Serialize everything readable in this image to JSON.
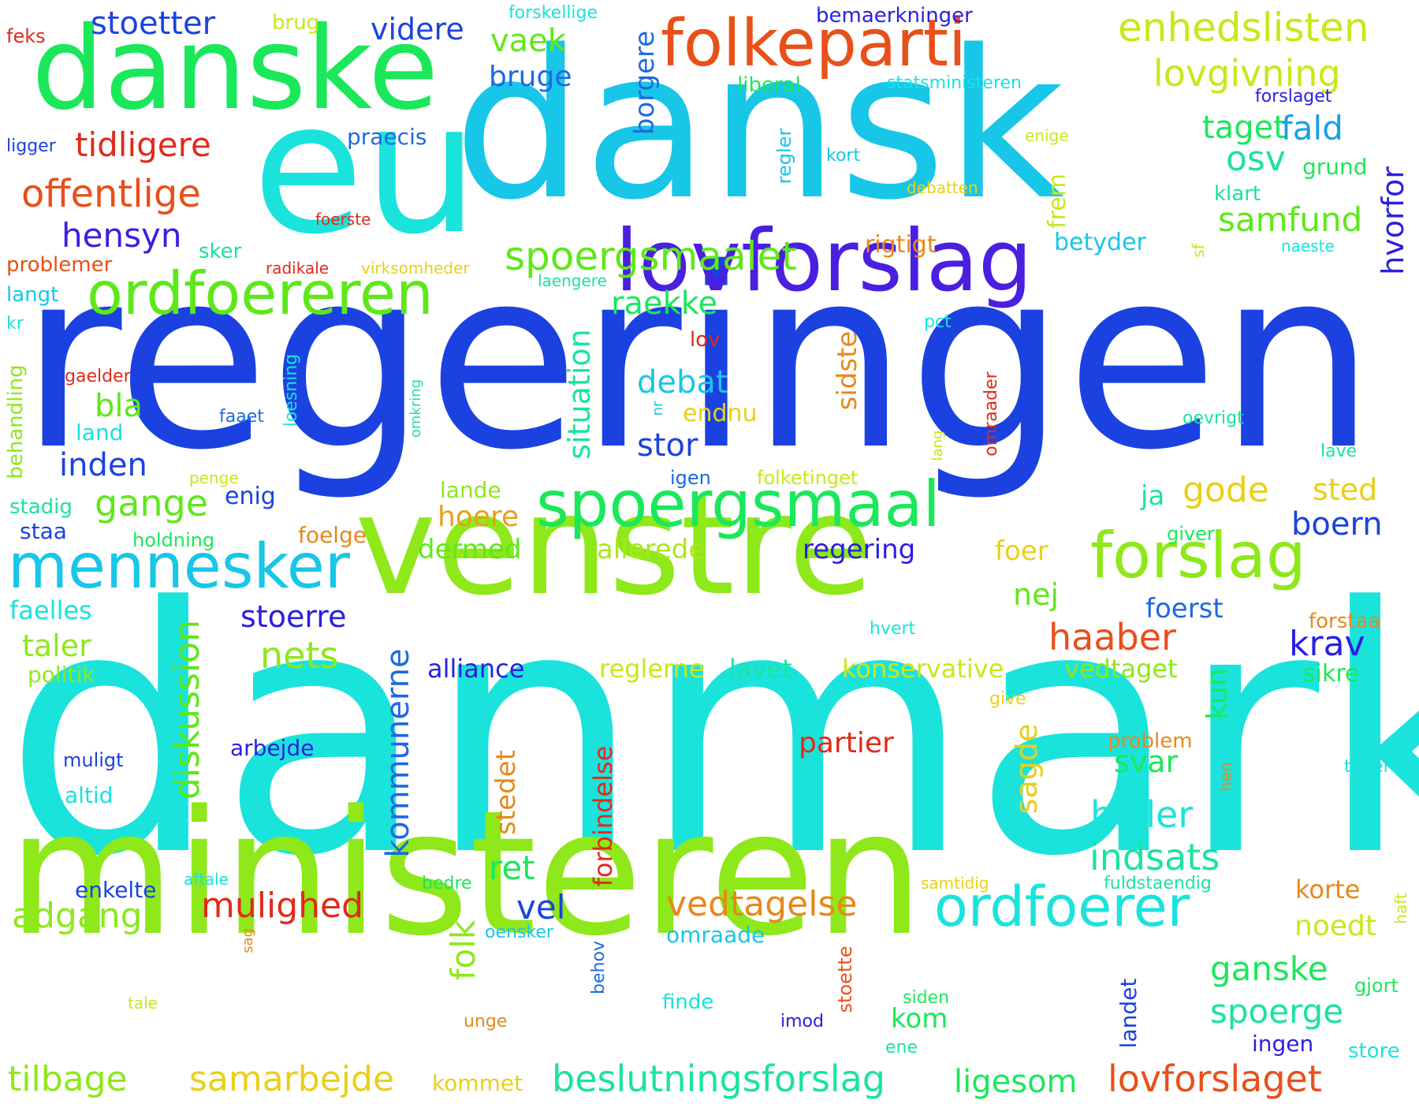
{
  "palette": {
    "cyan": "#1ae3dc",
    "sky": "#18c6e8",
    "blue": "#1b42e0",
    "indigo": "#4a1fe0",
    "green": "#1ae85a",
    "lime": "#8ee81a",
    "yellowgreen": "#c8e81a",
    "yellow": "#e8d01a",
    "orange": "#e8881a",
    "redorange": "#e8501a",
    "red": "#e02a1a",
    "teal": "#1ae3a0"
  },
  "words": {
    "w_danmark": "danmark",
    "w_regeringen": "regeringen",
    "w_ministeren": "ministeren",
    "w_dansk": "dansk",
    "w_eu": "eu",
    "w_venstre": "venstre",
    "w_danske": "danske",
    "w_lovforslag": "lovforslag",
    "w_folkeparti": "folkeparti",
    "w_spoergsmaal": "spoergsmaal",
    "w_ordfoereren": "ordfoereren",
    "w_mennesker": "mennesker",
    "w_forslag": "forslag",
    "w_ordfoerer": "ordfoerer",
    "w_enhedslisten": "enhedslisten",
    "w_lovgivning": "lovgivning",
    "w_offentlige": "offentlige",
    "w_tidligere": "tidligere",
    "w_spoergsmaalet": "spoergsmaalet",
    "w_beslutningsforslag": "beslutningsforslag",
    "w_lovforslaget": "lovforslaget",
    "w_samarbejde": "samarbejde",
    "w_vedtagelse": "vedtagelse",
    "w_mulighed": "mulighed",
    "w_stoetter": "stoetter",
    "w_videre": "videre",
    "w_vaek": "vaek",
    "w_bruge": "bruge",
    "w_hensyn": "hensyn",
    "w_osv": "osv",
    "w_samfund": "samfund",
    "w_taget": "taget",
    "w_fald": "fald",
    "w_haaber": "haaber",
    "w_heller": "heller",
    "w_indsats": "indsats",
    "w_diskussion": "diskussion",
    "w_kommunerne": "kommunerne",
    "w_situation": "situation",
    "w_gode": "gode",
    "w_nets": "nets",
    "w_tilbage": "tilbage",
    "w_adgang": "adgang",
    "w_ganske": "ganske",
    "w_spoerge": "spoerge",
    "w_gange": "gange",
    "w_inden": "inden",
    "w_stor": "stor",
    "w_debat": "debat",
    "w_raekke": "raekke",
    "w_bla": "bla",
    "w_boern": "boern",
    "w_krav": "krav",
    "w_stoerre": "stoerre",
    "w_taler": "taler",
    "w_hvorfor": "hvorfor",
    "w_borgere": "borgere",
    "w_folk": "folk",
    "w_sagde": "sagde",
    "w_stedet": "stedet",
    "w_forbindelse": "forbindelse",
    "w_ret": "ret",
    "w_vel": "vel",
    "w_sidste": "sidste",
    "w_noedt": "noedt",
    "w_kun": "kun",
    "w_svar": "svar",
    "w_partier": "partier",
    "w_hoere": "hoere",
    "w_dermed": "dermed",
    "w_allerede": "allerede",
    "w_regering": "regering",
    "w_foer": "foer",
    "w_nej": "nej",
    "w_foerst": "foerst",
    "w_alliance": "alliance",
    "w_reglerne": "reglerne",
    "w_lavet": "lavet",
    "w_konservative": "konservative",
    "w_vedtaget": "vedtaget",
    "w_sted": "sted",
    "w_ja": "ja",
    "w_arbejde": "arbejde",
    "w_kom": "kom",
    "w_korte": "korte",
    "w_sikre": "sikre",
    "w_frem": "frem",
    "w_betyder": "betyder",
    "w_rigtigt": "rigtigt",
    "w_grund": "grund",
    "w_klart": "klart",
    "w_praecis": "praecis",
    "w_endnu": "endnu",
    "w_enig": "enig",
    "w_lande": "lande",
    "w_staa": "staa",
    "w_faelles": "faelles",
    "w_politik": "politik",
    "w_land": "land",
    "w_landet": "landet",
    "w_ligesom": "ligesom",
    "w_kommet": "kommet",
    "w_omraade": "omraade",
    "w_ingen": "ingen",
    "w_store": "store",
    "w_brug": "brug",
    "w_forskellige": "forskellige",
    "w_bemaerkninger": "bemaerkninger",
    "w_statsministeren": "statsministeren",
    "w_liberal": "liberal",
    "w_forslaget": "forslaget",
    "w_feks": "feks",
    "w_ligger": "ligger",
    "w_regler": "regler",
    "w_kort": "kort",
    "w_enige": "enige",
    "w_debatten": "debatten",
    "w_foerste": "foerste",
    "w_sker": "sker",
    "w_problemer": "problemer",
    "w_radikale": "radikale",
    "w_virksomheder": "virksomheder",
    "w_langt": "langt",
    "w_laengere": "laengere",
    "w_naeste": "naeste",
    "w_sf": "sf",
    "w_kr": "kr",
    "w_lov": "lov",
    "w_pct": "pct",
    "w_behandling": "behandling",
    "w_gaelder": "gaelder",
    "w_loesning": "loesning",
    "w_omkring": "omkring",
    "w_faaet": "faaet",
    "w_nr": "nr",
    "w_lang": "lang",
    "w_omraader": "omraader",
    "w_oevrigt": "oevrigt",
    "w_lave": "lave",
    "w_penge": "penge",
    "w_igen": "igen",
    "w_folketinget": "folketinget",
    "w_stadig": "stadig",
    "w_holdning": "holdning",
    "w_foelge": "foelge",
    "w_giver": "giver",
    "w_hvert": "hvert",
    "w_forstaa": "forstaa",
    "w_give": "give",
    "w_problem": "problem",
    "w_hen": "hen",
    "w_muligt": "muligt",
    "w_altid": "altid",
    "w_tager": "tager",
    "w_enkelte": "enkelte",
    "w_aftale": "aftale",
    "w_bedre": "bedre",
    "w_samtidig": "samtidig",
    "w_fuldstaendig": "fuldstaendig",
    "w_haft": "haft",
    "w_sag": "sag",
    "w_oensker": "oensker",
    "w_behov": "behov",
    "w_stoette": "stoette",
    "w_gjort": "gjort",
    "w_tale": "tale",
    "w_unge": "unge",
    "w_finde": "finde",
    "w_imod": "imod",
    "w_siden": "siden",
    "w_ene": "ene"
  }
}
